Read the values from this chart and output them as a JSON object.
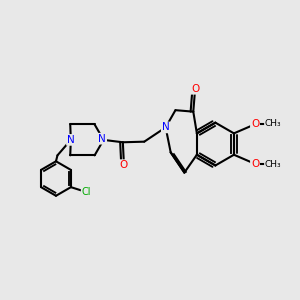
{
  "bg_color": "#e8e8e8",
  "atom_colors": {
    "N": "#0000ff",
    "O": "#ff0000",
    "Cl": "#00aa00",
    "C": "#000000"
  },
  "bond_color": "#000000",
  "bond_width": 1.5,
  "font_size_atom": 7.5,
  "font_size_label": 6.5
}
